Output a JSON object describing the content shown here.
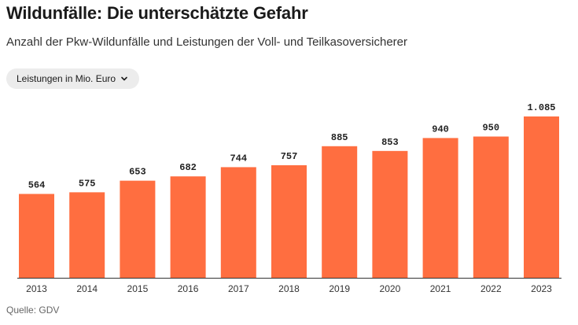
{
  "header": {
    "title": "Wildunfälle: Die unterschätzte Gefahr",
    "subtitle": "Anzahl der Pkw-Wildunfälle und Leistungen der Voll- und Teilkasoversicherer"
  },
  "dropdown": {
    "selected": "Leistungen in Mio. Euro",
    "icon": "chevron-down-icon"
  },
  "footer": {
    "source": "Quelle: GDV"
  },
  "colors": {
    "bar": "#ff6e40",
    "axis": "#333333"
  },
  "chart_data": {
    "type": "bar",
    "title": "",
    "xlabel": "",
    "ylabel": "",
    "categories": [
      "2013",
      "2014",
      "2015",
      "2016",
      "2017",
      "2018",
      "2019",
      "2020",
      "2021",
      "2022",
      "2023"
    ],
    "values": [
      564,
      575,
      653,
      682,
      744,
      757,
      885,
      853,
      940,
      950,
      1085
    ],
    "value_labels": [
      "564",
      "575",
      "653",
      "682",
      "744",
      "757",
      "885",
      "853",
      "940",
      "950",
      "1.085"
    ],
    "ylim": [
      0,
      1085
    ],
    "grid": false,
    "legend": "none"
  }
}
